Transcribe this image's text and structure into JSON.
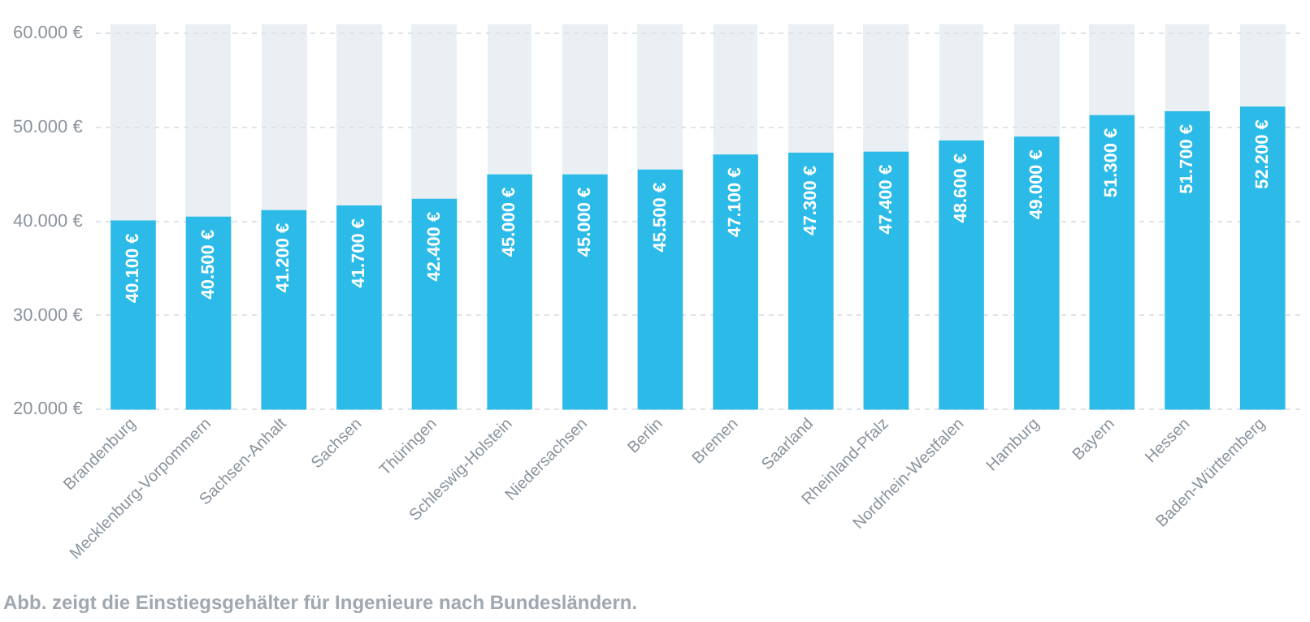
{
  "chart_data": {
    "type": "bar",
    "categories": [
      "Brandenburg",
      "Mecklenburg-Vorpommern",
      "Sachsen-Anhalt",
      "Sachsen",
      "Thüringen",
      "Schleswig-Holstein",
      "Niedersachsen",
      "Berlin",
      "Bremen",
      "Saarland",
      "Rheinland-Pfalz",
      "Nordrhein-Westfalen",
      "Hamburg",
      "Bayern",
      "Hessen",
      "Baden-Württemberg"
    ],
    "values": [
      40100,
      40500,
      41200,
      41700,
      42400,
      45000,
      45000,
      45500,
      47100,
      47300,
      47400,
      48600,
      49000,
      51300,
      51700,
      52200
    ],
    "value_labels": [
      "40.100 €",
      "40.500 €",
      "41.200 €",
      "41.700 €",
      "42.400 €",
      "45.000 €",
      "45.000 €",
      "45.500 €",
      "47.100 €",
      "47.300 €",
      "47.400 €",
      "48.600 €",
      "49.000 €",
      "51.300 €",
      "51.700 €",
      "52.200 €"
    ],
    "color": "#2cbbe8",
    "ylim": [
      20000,
      61000
    ],
    "yticks": [
      {
        "value": 20000,
        "label": "20.000 €"
      },
      {
        "value": 30000,
        "label": "30.000 €"
      },
      {
        "value": 40000,
        "label": "40.000 €"
      },
      {
        "value": 50000,
        "label": "50.000 €"
      },
      {
        "value": 60000,
        "label": "60.000 €"
      }
    ],
    "grid": "y",
    "annotations": [
      "Abb. zeigt die Einstiegsgehälter für Ingenieure nach Bundesländern."
    ]
  }
}
